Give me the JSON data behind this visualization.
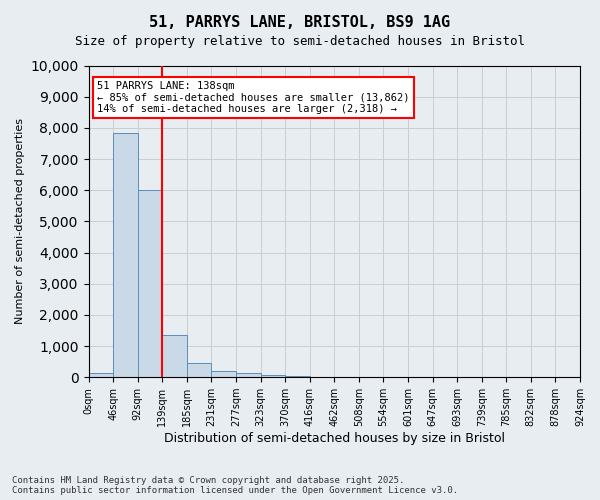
{
  "title_line1": "51, PARRYS LANE, BRISTOL, BS9 1AG",
  "title_line2": "Size of property relative to semi-detached houses in Bristol",
  "xlabel": "Distribution of semi-detached houses by size in Bristol",
  "ylabel": "Number of semi-detached properties",
  "bin_labels": [
    "0sqm",
    "46sqm",
    "92sqm",
    "139sqm",
    "185sqm",
    "231sqm",
    "277sqm",
    "323sqm",
    "370sqm",
    "416sqm",
    "462sqm",
    "508sqm",
    "554sqm",
    "601sqm",
    "647sqm",
    "693sqm",
    "739sqm",
    "785sqm",
    "832sqm",
    "878sqm",
    "924sqm"
  ],
  "bar_values": [
    120,
    7850,
    6000,
    1350,
    450,
    200,
    130,
    70,
    40,
    0,
    0,
    0,
    0,
    0,
    0,
    0,
    0,
    0,
    0,
    0
  ],
  "bar_color": "#c9d9e8",
  "bar_edge_color": "#5b8db8",
  "grid_color": "#cccccc",
  "vline_x": 3,
  "vline_color": "red",
  "annotation_text": "51 PARRYS LANE: 138sqm\n← 85% of semi-detached houses are smaller (13,862)\n14% of semi-detached houses are larger (2,318) →",
  "annotation_box_color": "white",
  "annotation_box_edge": "red",
  "ylim": [
    0,
    10000
  ],
  "yticks": [
    0,
    1000,
    2000,
    3000,
    4000,
    5000,
    6000,
    7000,
    8000,
    9000,
    10000
  ],
  "footer_line1": "Contains HM Land Registry data © Crown copyright and database right 2025.",
  "footer_line2": "Contains public sector information licensed under the Open Government Licence v3.0.",
  "bg_color": "#e8edf2",
  "plot_bg_color": "#e8edf2"
}
